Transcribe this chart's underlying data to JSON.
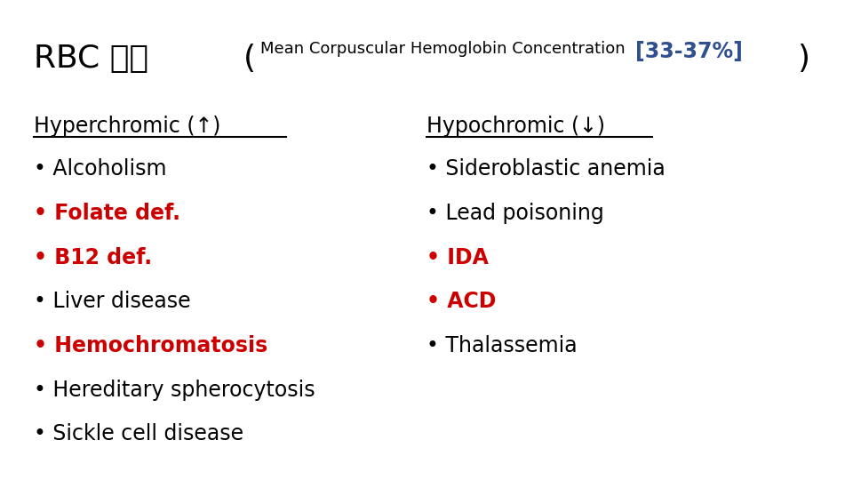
{
  "title_part1": "RBC 계열  ",
  "title_part2": "(",
  "title_part3": "Mean Corpuscular Hemoglobin Concentration ",
  "title_part4": "[33-37%]",
  "title_part5": ")",
  "title_color_main": "#000000",
  "title_color_bracket": "#2F4F8F",
  "background_color": "#ffffff",
  "left_header": "Hyperchromic (↑)",
  "left_items": [
    {
      "text": "Alcoholism",
      "bold": false,
      "color": "#000000"
    },
    {
      "text": "Folate def.",
      "bold": true,
      "color": "#cc0000"
    },
    {
      "text": "B12 def.",
      "bold": true,
      "color": "#cc0000"
    },
    {
      "text": "Liver disease",
      "bold": false,
      "color": "#000000"
    },
    {
      "text": "Hemochromatosis",
      "bold": true,
      "color": "#cc0000"
    },
    {
      "text": "Hereditary spherocytosis",
      "bold": false,
      "color": "#000000"
    },
    {
      "text": "Sickle cell disease",
      "bold": false,
      "color": "#000000"
    }
  ],
  "right_header": "Hypochromic (↓)",
  "right_items": [
    {
      "text": "Sideroblastic anemia",
      "bold": false,
      "color": "#000000"
    },
    {
      "text": "Lead poisoning",
      "bold": false,
      "color": "#000000"
    },
    {
      "text": "IDA",
      "bold": true,
      "color": "#cc0000"
    },
    {
      "text": "ACD",
      "bold": true,
      "color": "#cc0000"
    },
    {
      "text": "Thalassemia",
      "bold": false,
      "color": "#000000"
    }
  ]
}
